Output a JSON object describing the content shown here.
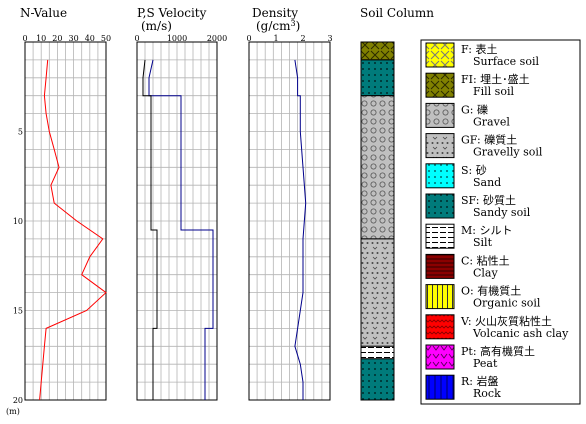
{
  "chart_data": {
    "type": "line",
    "depth_axis": {
      "unit": "(m)",
      "ylim": [
        0,
        20
      ],
      "ticks": [
        5,
        10,
        15,
        20
      ]
    },
    "panels": [
      {
        "id": "nvalue",
        "title": "N-Value",
        "unit": "",
        "xlim": [
          0,
          50
        ],
        "ticks": [
          0,
          10,
          20,
          30,
          40,
          50
        ],
        "series": [
          {
            "color": "#ff0000",
            "points": [
              [
                14,
                1
              ],
              [
                13,
                2
              ],
              [
                12,
                3
              ],
              [
                13,
                4
              ],
              [
                15,
                5
              ],
              [
                18,
                6
              ],
              [
                21,
                7
              ],
              [
                16,
                8
              ],
              [
                18,
                9
              ],
              [
                32,
                10
              ],
              [
                48,
                11
              ],
              [
                40,
                12
              ],
              [
                35,
                13
              ],
              [
                50,
                14
              ],
              [
                38,
                15
              ],
              [
                13,
                16
              ],
              [
                12,
                17
              ],
              [
                11,
                18
              ],
              [
                10,
                19
              ],
              [
                9,
                20
              ]
            ]
          }
        ]
      },
      {
        "id": "velocity",
        "title": "P,S Velocity",
        "unit": "(m/s)",
        "xlim": [
          0,
          2000
        ],
        "ticks": [
          0,
          1000,
          2000
        ],
        "series": [
          {
            "name": "P",
            "color": "#00008b",
            "points": [
              [
                400,
                1
              ],
              [
                300,
                2
              ],
              [
                300,
                3
              ],
              [
                1100,
                3
              ],
              [
                1100,
                5
              ],
              [
                1100,
                10.5
              ],
              [
                1900,
                10.5
              ],
              [
                1900,
                16
              ],
              [
                1700,
                16
              ],
              [
                1700,
                20
              ]
            ]
          },
          {
            "name": "S",
            "color": "#000000",
            "points": [
              [
                200,
                1
              ],
              [
                150,
                2
              ],
              [
                150,
                3
              ],
              [
                350,
                3
              ],
              [
                350,
                10.5
              ],
              [
                500,
                10.5
              ],
              [
                500,
                16
              ],
              [
                400,
                16
              ],
              [
                400,
                20
              ]
            ]
          }
        ]
      },
      {
        "id": "density",
        "title": "Density",
        "unit": "(g/cm^3)",
        "xlim": [
          0,
          3
        ],
        "ticks": [
          0,
          1,
          2,
          3
        ],
        "series": [
          {
            "color": "#00008b",
            "points": [
              [
                1.7,
                1
              ],
              [
                1.8,
                2
              ],
              [
                1.8,
                3
              ],
              [
                1.9,
                3
              ],
              [
                1.9,
                5
              ],
              [
                2.0,
                7
              ],
              [
                2.1,
                9
              ],
              [
                2.0,
                11
              ],
              [
                2.0,
                14
              ],
              [
                1.9,
                15
              ],
              [
                1.8,
                16
              ],
              [
                1.7,
                17
              ],
              [
                1.9,
                18
              ],
              [
                2.0,
                19
              ],
              [
                2.0,
                20
              ]
            ]
          }
        ]
      }
    ],
    "soil_column": {
      "title": "Soil Column",
      "layers": [
        {
          "code": "FI",
          "top": 0,
          "bottom": 1
        },
        {
          "code": "SF",
          "top": 1,
          "bottom": 3
        },
        {
          "code": "G",
          "top": 3,
          "bottom": 11
        },
        {
          "code": "GF",
          "top": 11,
          "bottom": 17
        },
        {
          "code": "M",
          "top": 17,
          "bottom": 17.7
        },
        {
          "code": "SF",
          "top": 17.7,
          "bottom": 20
        }
      ]
    },
    "legend": [
      {
        "code": "F",
        "label": "F: 表土",
        "sub": "Surface soil"
      },
      {
        "code": "FI",
        "label": "FI: 埋土･盛土",
        "sub": "Fill soil"
      },
      {
        "code": "G",
        "label": "G: 礫",
        "sub": "Gravel"
      },
      {
        "code": "GF",
        "label": "GF: 礫質土",
        "sub": "Gravelly soil"
      },
      {
        "code": "S",
        "label": "S: 砂",
        "sub": "Sand"
      },
      {
        "code": "SF",
        "label": "SF: 砂質土",
        "sub": "Sandy soil"
      },
      {
        "code": "M",
        "label": "M: シルト",
        "sub": "Silt"
      },
      {
        "code": "C",
        "label": "C: 粘性土",
        "sub": "Clay"
      },
      {
        "code": "O",
        "label": "O: 有機質土",
        "sub": "Organic soil"
      },
      {
        "code": "V",
        "label": "V: 火山灰質粘性土",
        "sub": "Volcanic ash clay"
      },
      {
        "code": "Pt",
        "label": "Pt: 高有機質土",
        "sub": "Peat"
      },
      {
        "code": "R",
        "label": "R: 岩盤",
        "sub": "Rock"
      }
    ]
  },
  "colors": {
    "grid": "#b4b4b4",
    "axis": "#000000"
  }
}
